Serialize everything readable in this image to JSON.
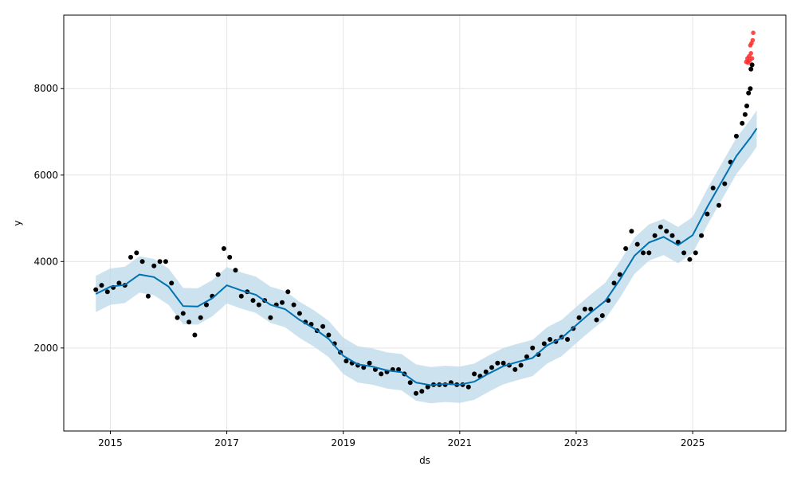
{
  "chart_data": {
    "type": "line",
    "title": "",
    "xlabel": "ds",
    "ylabel": "y",
    "grid": true,
    "xlim": [
      2014.2,
      2026.6
    ],
    "ylim": [
      80,
      9700
    ],
    "x_ticks": [
      2015,
      2017,
      2019,
      2021,
      2023,
      2025
    ],
    "x_tick_labels": [
      "2015",
      "2017",
      "2019",
      "2021",
      "2023",
      "2025"
    ],
    "y_ticks": [
      2000,
      4000,
      6000,
      8000
    ],
    "y_tick_labels": [
      "2000",
      "4000",
      "6000",
      "8000"
    ],
    "colors": {
      "forecast": "#0072B2",
      "band": "#bcd8ea",
      "points": "#000000",
      "outliers": "#ff2a2a",
      "grid": "#e4e4e4"
    },
    "forecast": {
      "x": [
        2014.75,
        2015.0,
        2015.25,
        2015.5,
        2015.75,
        2016.0,
        2016.25,
        2016.5,
        2016.75,
        2017.0,
        2017.25,
        2017.5,
        2017.75,
        2018.0,
        2018.25,
        2018.5,
        2018.75,
        2019.0,
        2019.25,
        2019.5,
        2019.75,
        2020.0,
        2020.25,
        2020.5,
        2020.75,
        2021.0,
        2021.25,
        2021.5,
        2021.75,
        2022.0,
        2022.25,
        2022.5,
        2022.75,
        2023.0,
        2023.25,
        2023.5,
        2023.75,
        2024.0,
        2024.25,
        2024.5,
        2024.75,
        2025.0,
        2025.25,
        2025.5,
        2025.75,
        2026.0,
        2026.1
      ],
      "yhat": [
        3250,
        3420,
        3460,
        3700,
        3640,
        3420,
        2970,
        2960,
        3150,
        3450,
        3330,
        3230,
        3000,
        2900,
        2650,
        2450,
        2210,
        1820,
        1620,
        1570,
        1480,
        1440,
        1200,
        1140,
        1170,
        1150,
        1220,
        1410,
        1580,
        1680,
        1770,
        2060,
        2230,
        2530,
        2820,
        3090,
        3580,
        4130,
        4440,
        4570,
        4380,
        4610,
        5260,
        5850,
        6440,
        6880,
        7080
      ],
      "band": 420
    },
    "observed": {
      "x": [
        2014.75,
        2014.85,
        2014.95,
        2015.05,
        2015.15,
        2015.25,
        2015.35,
        2015.45,
        2015.55,
        2015.65,
        2015.75,
        2015.85,
        2015.95,
        2016.05,
        2016.15,
        2016.25,
        2016.35,
        2016.45,
        2016.55,
        2016.65,
        2016.75,
        2016.85,
        2016.95,
        2017.05,
        2017.15,
        2017.25,
        2017.35,
        2017.45,
        2017.55,
        2017.65,
        2017.75,
        2017.85,
        2017.95,
        2018.05,
        2018.15,
        2018.25,
        2018.35,
        2018.45,
        2018.55,
        2018.65,
        2018.75,
        2018.85,
        2018.95,
        2019.05,
        2019.15,
        2019.25,
        2019.35,
        2019.45,
        2019.55,
        2019.65,
        2019.75,
        2019.85,
        2019.95,
        2020.05,
        2020.15,
        2020.25,
        2020.35,
        2020.45,
        2020.55,
        2020.65,
        2020.75,
        2020.85,
        2020.95,
        2021.05,
        2021.15,
        2021.25,
        2021.35,
        2021.45,
        2021.55,
        2021.65,
        2021.75,
        2021.85,
        2021.95,
        2022.05,
        2022.15,
        2022.25,
        2022.35,
        2022.45,
        2022.55,
        2022.65,
        2022.75,
        2022.85,
        2022.95,
        2023.05,
        2023.15,
        2023.25,
        2023.35,
        2023.45,
        2023.55,
        2023.65,
        2023.75,
        2023.85,
        2023.95,
        2024.05,
        2024.15,
        2024.25,
        2024.35,
        2024.45,
        2024.55,
        2024.65,
        2024.75,
        2024.85,
        2024.95,
        2025.05,
        2025.15,
        2025.25,
        2025.35,
        2025.45,
        2025.55,
        2025.65,
        2025.75,
        2025.85
      ],
      "y": [
        3350,
        3450,
        3300,
        3400,
        3500,
        3450,
        4100,
        4200,
        4000,
        3200,
        3900,
        4000,
        4000,
        3500,
        2700,
        2800,
        2600,
        2300,
        2700,
        3000,
        3200,
        3700,
        4300,
        4100,
        3800,
        3200,
        3300,
        3100,
        3000,
        3100,
        2700,
        3000,
        3050,
        3300,
        3000,
        2800,
        2600,
        2550,
        2400,
        2500,
        2300,
        2100,
        1900,
        1700,
        1650,
        1600,
        1550,
        1650,
        1500,
        1400,
        1450,
        1500,
        1500,
        1400,
        1200,
        950,
        1000,
        1100,
        1150,
        1150,
        1150,
        1200,
        1150,
        1150,
        1100,
        1400,
        1350,
        1450,
        1550,
        1650,
        1650,
        1600,
        1500,
        1600,
        1800,
        2000,
        1850,
        2100,
        2200,
        2150,
        2250,
        2200,
        2450,
        2700,
        2900,
        2900,
        2650,
        2750,
        3100,
        3500,
        3700,
        4300,
        4700,
        4400,
        4200,
        4200,
        4600,
        4800,
        4700,
        4600,
        4450,
        4200,
        4050,
        4200,
        4600,
        5100,
        5700,
        5300,
        5800,
        6300,
        6900,
        7200
      ]
    },
    "observed_late": {
      "x": [
        2025.9,
        2025.93,
        2025.96,
        2025.99,
        2026.0,
        2026.02
      ],
      "y": [
        7400,
        7600,
        7900,
        8000,
        8450,
        8550
      ]
    },
    "outliers": {
      "x": [
        2025.92,
        2025.94,
        2025.95,
        2025.97,
        2025.98,
        2025.99,
        2026.0,
        2026.01,
        2026.02,
        2026.03,
        2026.04
      ],
      "y": [
        8620,
        8700,
        8600,
        8750,
        8650,
        9000,
        8820,
        9050,
        8700,
        9120,
        9290
      ]
    }
  }
}
